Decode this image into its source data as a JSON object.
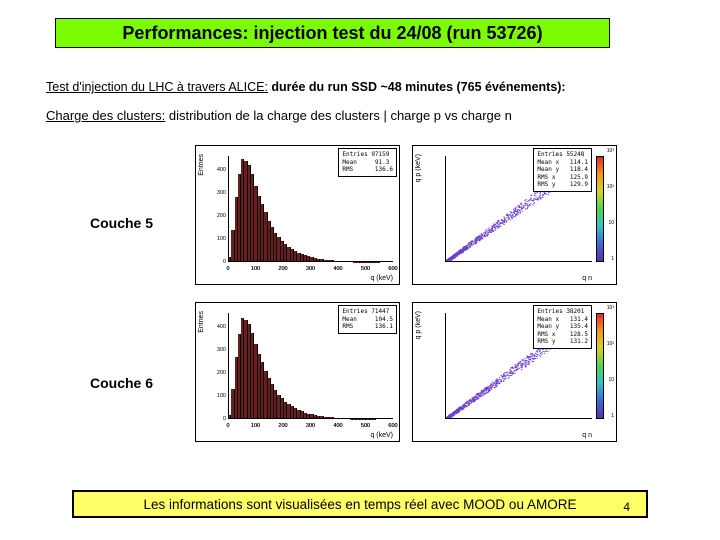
{
  "title": "Performances: injection test du 24/08 (run 53726)",
  "subtitle_pre": "Test d'injection du LHC à travers ALICE:",
  "subtitle_post": " durée du run SSD ~48 minutes (765 événements):",
  "desc_ul": "Charge des clusters:",
  "desc_rest": " distribution de la charge des clusters | charge p vs charge n",
  "row1_label": "Couche 5",
  "row2_label": "Couche 6",
  "footer": "Les informations sont visualisées en temps réel avec MOOD ou AMORE",
  "page_number": "4",
  "hist1": {
    "type": "histogram",
    "ylabel": "Entries",
    "xlabel": "q (keV)",
    "color": "#6b1e1e",
    "values": [
      20,
      140,
      280,
      380,
      448,
      440,
      420,
      380,
      330,
      285,
      250,
      215,
      180,
      152,
      128,
      108,
      92,
      78,
      66,
      56,
      48,
      40,
      34,
      29,
      24,
      20,
      17,
      14,
      12,
      10,
      9,
      7,
      6,
      5,
      4,
      4,
      3,
      3,
      2,
      2,
      2,
      1,
      1,
      1,
      1,
      1,
      0,
      0,
      0,
      0
    ],
    "ymax": 460,
    "xticks": [
      0,
      100,
      200,
      300,
      400,
      500,
      600
    ],
    "yticks": [
      0,
      100,
      200,
      300,
      400
    ],
    "stats": {
      "Entries": "97159",
      "Mean": " 91.3",
      "RMS": " 136.6"
    }
  },
  "hist2": {
    "type": "histogram",
    "ylabel": "Entries",
    "xlabel": "q (keV)",
    "color": "#6b1e1e",
    "values": [
      18,
      130,
      270,
      370,
      440,
      430,
      412,
      372,
      324,
      280,
      246,
      210,
      178,
      150,
      126,
      106,
      90,
      76,
      65,
      55,
      47,
      39,
      33,
      28,
      23,
      20,
      17,
      14,
      12,
      10,
      8,
      7,
      6,
      5,
      4,
      4,
      3,
      2,
      2,
      2,
      1,
      1,
      1,
      1,
      1,
      0,
      0,
      0,
      0,
      0
    ],
    "ymax": 460,
    "xticks": [
      0,
      100,
      200,
      300,
      400,
      500,
      600
    ],
    "yticks": [
      0,
      100,
      200,
      300,
      400
    ],
    "stats": {
      "Entries": "71447",
      "Mean": " 104.5",
      "RMS": " 136.1"
    }
  },
  "scat1": {
    "type": "scatter",
    "ylabel": "q p (keV)",
    "xlabel": "q n",
    "xlim": [
      0,
      800
    ],
    "ylim": [
      0,
      800
    ],
    "dot_color": "#6a3fd0",
    "diag_width": 0.4,
    "n_points": 900,
    "stats": {
      "Entries": "55248",
      "Mean x": " 114.1",
      "Mean y": " 118.4",
      "RMS x": " 125.9",
      "RMS y": " 129.9"
    }
  },
  "scat2": {
    "type": "scatter",
    "ylabel": "q p (keV)",
    "xlabel": "q n",
    "xlim": [
      0,
      800
    ],
    "ylim": [
      0,
      800
    ],
    "dot_color": "#6a3fd0",
    "diag_width": 0.4,
    "n_points": 900,
    "stats": {
      "Entries": "38201",
      "Mean x": " 131.4",
      "Mean y": " 135.4",
      "RMS x": " 128.5",
      "RMS y": " 131.2"
    }
  },
  "colorbar_ticks": [
    "1",
    "10",
    "10²",
    "10³"
  ]
}
